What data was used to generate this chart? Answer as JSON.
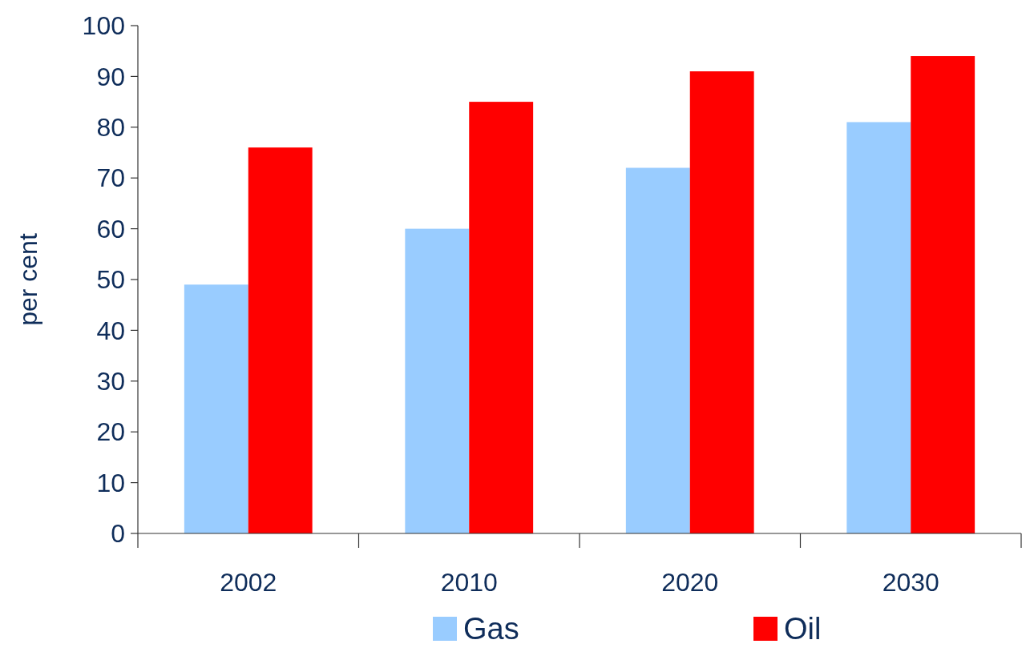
{
  "chart_data": {
    "type": "bar",
    "ylabel": "per cent",
    "categories": [
      "2002",
      "2010",
      "2020",
      "2030"
    ],
    "series": [
      {
        "name": "Gas",
        "color": "#99ccff",
        "values": [
          49,
          60,
          72,
          81
        ]
      },
      {
        "name": "Oil",
        "color": "#ff0000",
        "values": [
          76,
          85,
          91,
          94
        ]
      }
    ],
    "ylim": [
      0,
      100
    ],
    "yticks": [
      0,
      10,
      20,
      30,
      40,
      50,
      60,
      70,
      80,
      90,
      100
    ],
    "grid": false,
    "legend": "bottom"
  }
}
